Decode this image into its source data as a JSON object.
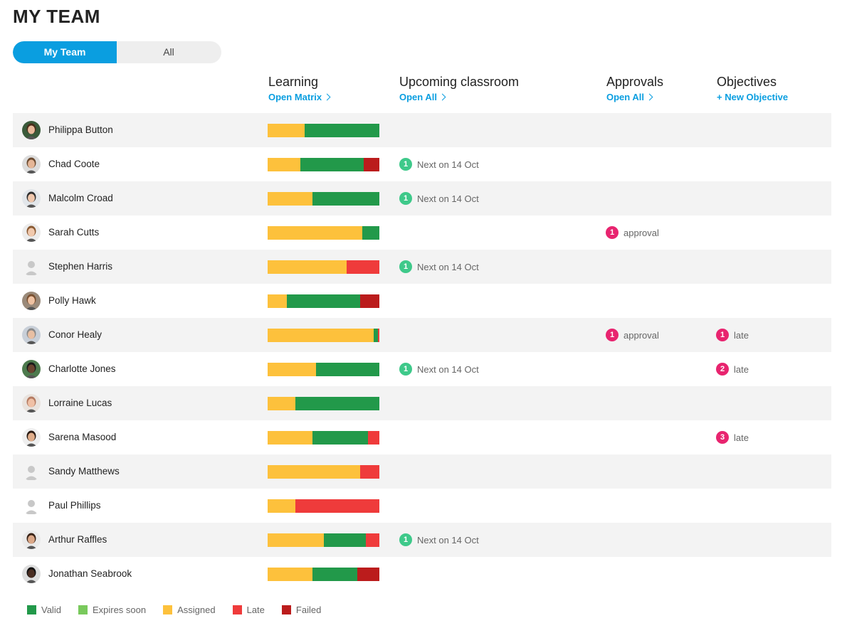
{
  "page": {
    "title": "MY TEAM"
  },
  "toggle": {
    "my_team": "My Team",
    "all": "All"
  },
  "columns": {
    "learning": {
      "title": "Learning",
      "link": "Open Matrix"
    },
    "classroom": {
      "title": "Upcoming classroom",
      "link": "Open All"
    },
    "approvals": {
      "title": "Approvals",
      "link": "Open All"
    },
    "objectives": {
      "title": "Objectives",
      "link": "+ New Objective"
    }
  },
  "colors": {
    "valid": "#22994a",
    "expires_soon": "#79c95c",
    "assigned": "#fdc13c",
    "late": "#ef3b3b",
    "failed": "#bb1c1c",
    "accent": "#0a9ee0"
  },
  "legend": [
    {
      "key": "valid",
      "label": "Valid"
    },
    {
      "key": "expires_soon",
      "label": "Expires soon"
    },
    {
      "key": "assigned",
      "label": "Assigned"
    },
    {
      "key": "late",
      "label": "Late"
    },
    {
      "key": "failed",
      "label": "Failed"
    }
  ],
  "team": [
    {
      "name": "Philippa Button",
      "avatar": "photo-1",
      "learning": {
        "assigned": 0.33,
        "valid": 0.67,
        "late": 0,
        "failed": 0
      },
      "classroom": null,
      "approvals": null,
      "objectives": null
    },
    {
      "name": "Chad Coote",
      "avatar": "photo-2",
      "learning": {
        "assigned": 0.29,
        "valid": 0.57,
        "late": 0,
        "failed": 0.14
      },
      "classroom": {
        "count": "1",
        "text": "Next on 14 Oct"
      },
      "approvals": null,
      "objectives": null
    },
    {
      "name": "Malcolm Croad",
      "avatar": "photo-3",
      "learning": {
        "assigned": 0.4,
        "valid": 0.6,
        "late": 0,
        "failed": 0
      },
      "classroom": {
        "count": "1",
        "text": "Next on 14 Oct"
      },
      "approvals": null,
      "objectives": null
    },
    {
      "name": "Sarah Cutts",
      "avatar": "photo-4",
      "learning": {
        "assigned": 0.85,
        "valid": 0.15,
        "late": 0,
        "failed": 0
      },
      "classroom": null,
      "approvals": {
        "count": "1",
        "text": "approval"
      },
      "objectives": null
    },
    {
      "name": "Stephen Harris",
      "avatar": "placeholder",
      "learning": {
        "assigned": 0.71,
        "valid": 0,
        "late": 0.29,
        "failed": 0
      },
      "classroom": {
        "count": "1",
        "text": "Next on 14 Oct"
      },
      "approvals": null,
      "objectives": null
    },
    {
      "name": "Polly Hawk",
      "avatar": "photo-5",
      "learning": {
        "assigned": 0.17,
        "valid": 0.66,
        "late": 0,
        "failed": 0.17
      },
      "classroom": null,
      "approvals": null,
      "objectives": null
    },
    {
      "name": "Conor Healy",
      "avatar": "photo-6",
      "learning": {
        "assigned": 0.95,
        "valid": 0.04,
        "late": 0.01,
        "failed": 0
      },
      "classroom": null,
      "approvals": {
        "count": "1",
        "text": "approval"
      },
      "objectives": {
        "count": "1",
        "text": "late"
      }
    },
    {
      "name": "Charlotte Jones",
      "avatar": "photo-7",
      "learning": {
        "assigned": 0.43,
        "valid": 0.57,
        "late": 0,
        "failed": 0
      },
      "classroom": {
        "count": "1",
        "text": "Next on 14 Oct"
      },
      "approvals": null,
      "objectives": {
        "count": "2",
        "text": "late"
      }
    },
    {
      "name": "Lorraine Lucas",
      "avatar": "photo-8",
      "learning": {
        "assigned": 0.25,
        "valid": 0.75,
        "late": 0,
        "failed": 0
      },
      "classroom": null,
      "approvals": null,
      "objectives": null
    },
    {
      "name": "Sarena Masood",
      "avatar": "photo-9",
      "learning": {
        "assigned": 0.4,
        "valid": 0.5,
        "late": 0.1,
        "failed": 0
      },
      "classroom": null,
      "approvals": null,
      "objectives": {
        "count": "3",
        "text": "late"
      }
    },
    {
      "name": "Sandy Matthews",
      "avatar": "placeholder",
      "learning": {
        "assigned": 0.83,
        "valid": 0,
        "late": 0.17,
        "failed": 0
      },
      "classroom": null,
      "approvals": null,
      "objectives": null
    },
    {
      "name": "Paul Phillips",
      "avatar": "placeholder",
      "learning": {
        "assigned": 0.25,
        "valid": 0,
        "late": 0.75,
        "failed": 0
      },
      "classroom": null,
      "approvals": null,
      "objectives": null
    },
    {
      "name": "Arthur Raffles",
      "avatar": "photo-10",
      "learning": {
        "assigned": 0.5,
        "valid": 0.38,
        "late": 0.12,
        "failed": 0
      },
      "classroom": {
        "count": "1",
        "text": "Next on 14 Oct"
      },
      "approvals": null,
      "objectives": null
    },
    {
      "name": "Jonathan Seabrook",
      "avatar": "photo-11",
      "learning": {
        "assigned": 0.4,
        "valid": 0.4,
        "late": 0,
        "failed": 0.2
      },
      "classroom": null,
      "approvals": null,
      "objectives": null
    }
  ]
}
